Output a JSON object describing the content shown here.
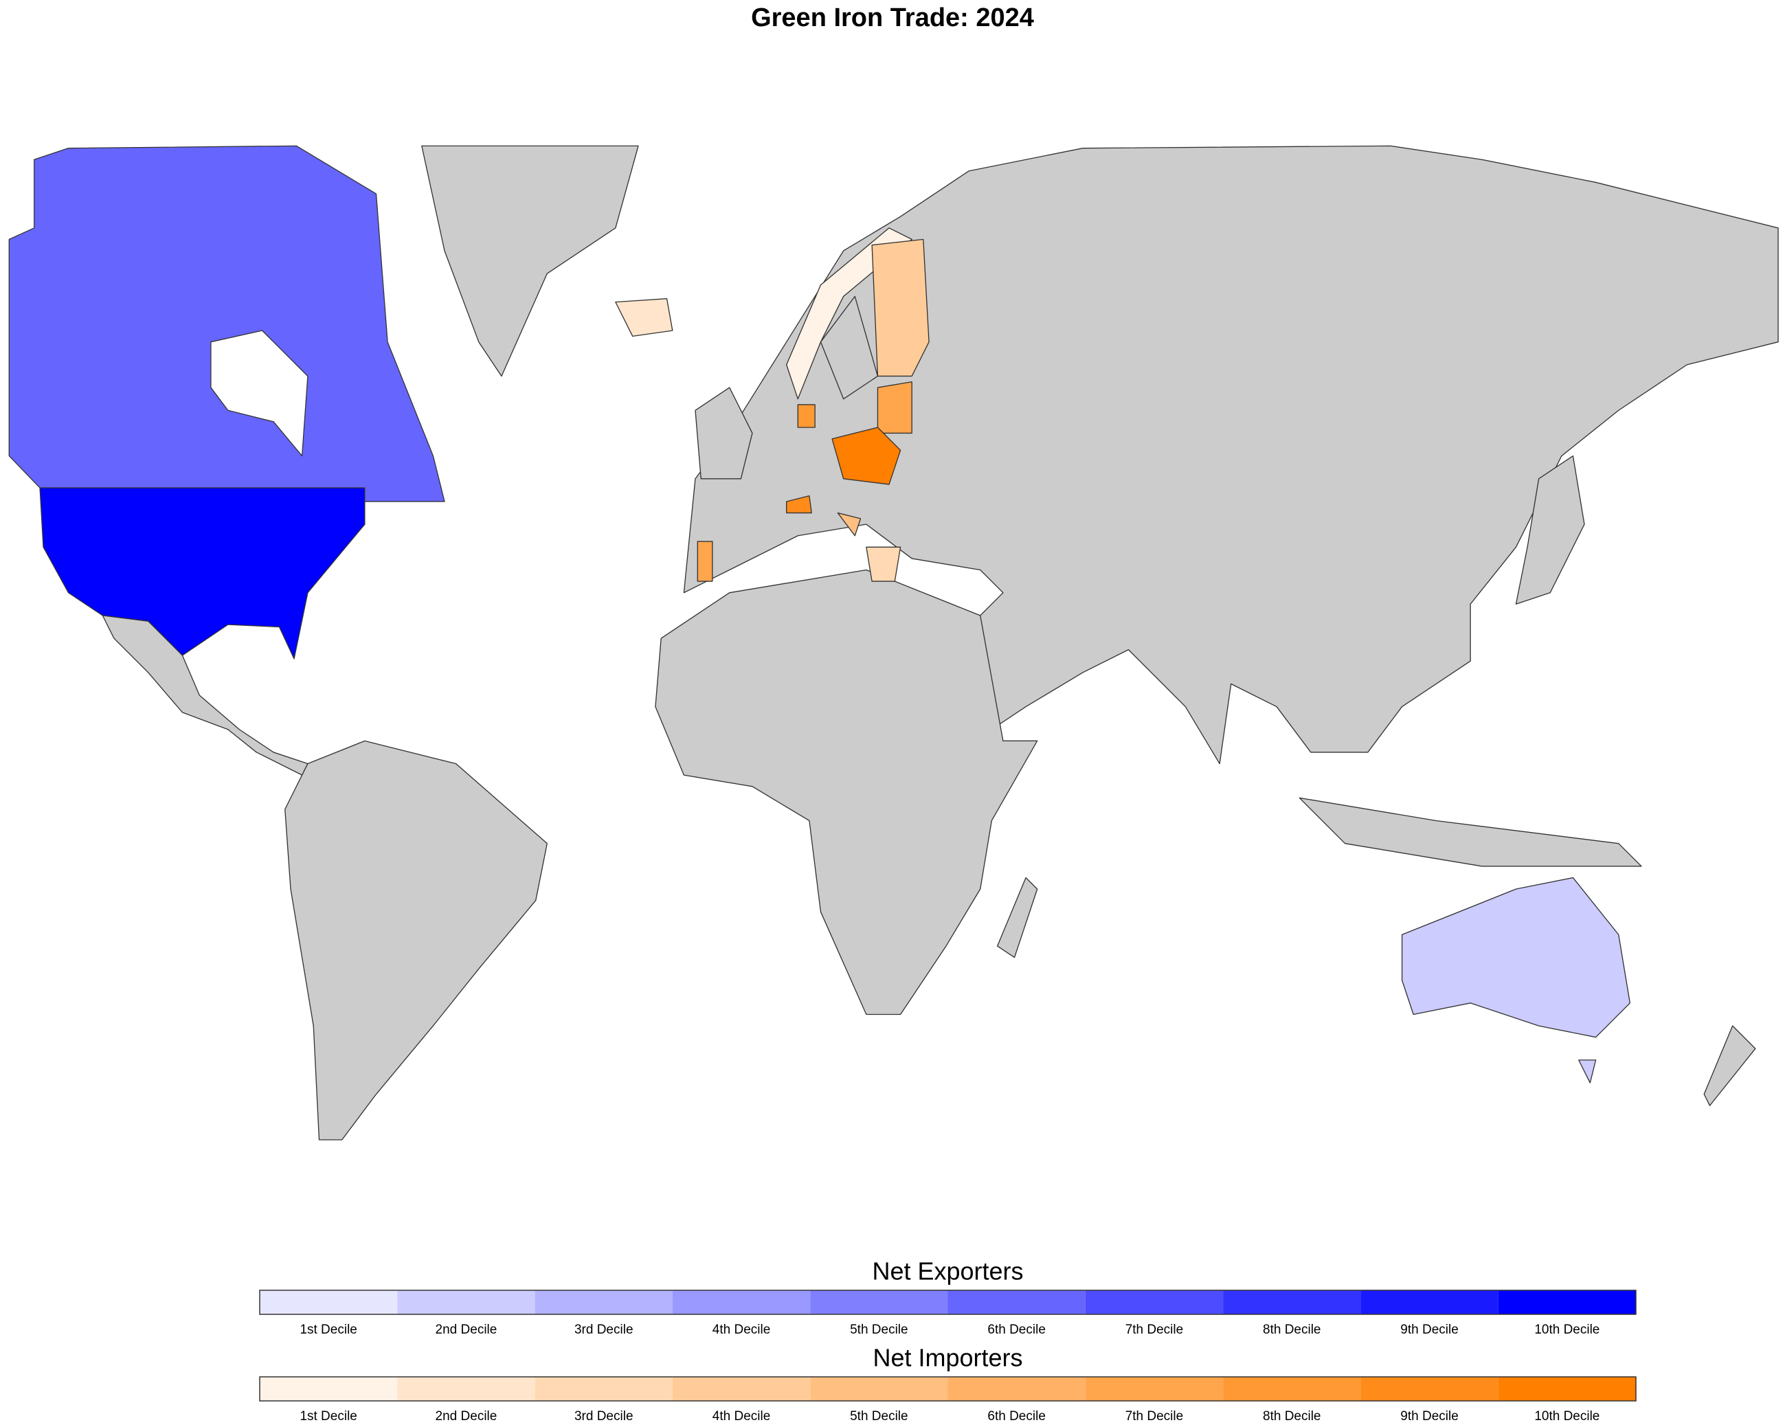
{
  "title": "Green Iron Trade: 2024",
  "legends": [
    {
      "title": "Net Exporters",
      "items": [
        {
          "label": "1st Decile",
          "color": "#e6e6ff"
        },
        {
          "label": "2nd Decile",
          "color": "#ccccff"
        },
        {
          "label": "3rd Decile",
          "color": "#b3b3ff"
        },
        {
          "label": "4th Decile",
          "color": "#9999ff"
        },
        {
          "label": "5th Decile",
          "color": "#8080ff"
        },
        {
          "label": "6th Decile",
          "color": "#6666ff"
        },
        {
          "label": "7th Decile",
          "color": "#4d4dff"
        },
        {
          "label": "8th Decile",
          "color": "#3333ff"
        },
        {
          "label": "9th Decile",
          "color": "#1a1aff"
        },
        {
          "label": "10th Decile",
          "color": "#0000ff"
        }
      ]
    },
    {
      "title": "Net Importers",
      "items": [
        {
          "label": "1st Decile",
          "color": "#fff2e6"
        },
        {
          "label": "2nd Decile",
          "color": "#ffe5cc"
        },
        {
          "label": "3rd Decile",
          "color": "#ffd9b3"
        },
        {
          "label": "4th Decile",
          "color": "#ffcc99"
        },
        {
          "label": "5th Decile",
          "color": "#ffbf80"
        },
        {
          "label": "6th Decile",
          "color": "#ffb266"
        },
        {
          "label": "7th Decile",
          "color": "#ffa64d"
        },
        {
          "label": "8th Decile",
          "color": "#ff9933"
        },
        {
          "label": "9th Decile",
          "color": "#ff8c1a"
        },
        {
          "label": "10th Decile",
          "color": "#ff7f00"
        }
      ]
    }
  ]
}
